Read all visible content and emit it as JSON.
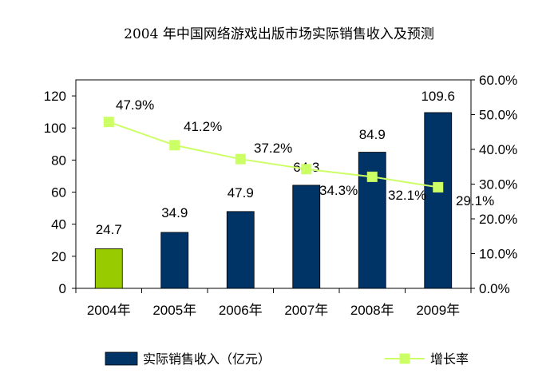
{
  "chart_data": {
    "type": "bar",
    "title": "2004 年中国网络游戏出版市场实际销售收入及预测",
    "categories": [
      "2004年",
      "2005年",
      "2006年",
      "2007年",
      "2008年",
      "2009年"
    ],
    "series": [
      {
        "name": "实际销售收入（亿元）",
        "type": "bar",
        "axis": "left",
        "values": [
          24.7,
          34.9,
          47.9,
          64.3,
          84.9,
          109.6
        ],
        "value_labels": [
          "24.7",
          "34.9",
          "47.9",
          "64.3",
          "84.9",
          "109.6"
        ],
        "colors": [
          "#99cc00",
          "#003366",
          "#003366",
          "#003366",
          "#003366",
          "#003366"
        ]
      },
      {
        "name": "增长率",
        "type": "line",
        "axis": "right",
        "values": [
          47.9,
          41.2,
          37.2,
          34.3,
          32.1,
          29.1
        ],
        "value_labels": [
          "47.9%",
          "41.2%",
          "37.2%",
          "34.3%",
          "32.1%",
          "29.1%"
        ],
        "color": "#ccff66"
      }
    ],
    "y_left": {
      "ylim": [
        0,
        130
      ],
      "ticks": [
        0,
        20,
        40,
        60,
        80,
        100,
        120
      ],
      "tick_labels": [
        "0",
        "20",
        "40",
        "60",
        "80",
        "100",
        "120"
      ]
    },
    "y_right": {
      "ylim": [
        0,
        60
      ],
      "ticks": [
        0,
        10,
        20,
        30,
        40,
        50,
        60
      ],
      "tick_labels": [
        "0.0%",
        "10.0%",
        "20.0%",
        "30.0%",
        "40.0%",
        "50.0%",
        "60.0%"
      ]
    },
    "legend": {
      "position": "bottom",
      "entries": [
        "实际销售收入（亿元）",
        "增长率"
      ]
    },
    "grid": false
  }
}
